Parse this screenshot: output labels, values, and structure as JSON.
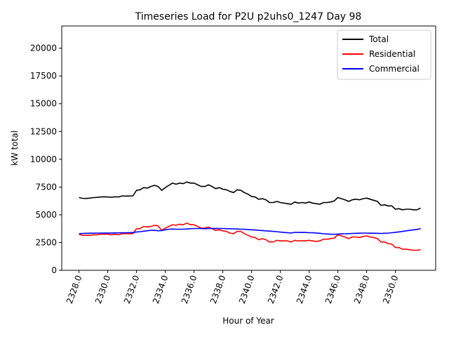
{
  "chart_data": {
    "type": "line",
    "title": "Timeseries Load for P2U p2uhs0_1247  Day 98",
    "xlabel": "Hour of Year",
    "ylabel": "kW total",
    "xlim": [
      2326.8,
      2352.8
    ],
    "ylim": [
      0,
      22000
    ],
    "x_ticks": [
      2328.0,
      2330.0,
      2332.0,
      2334.0,
      2336.0,
      2338.0,
      2340.0,
      2342.0,
      2344.0,
      2346.0,
      2348.0,
      2350.0
    ],
    "x_tick_labels": [
      "2328.0",
      "2330.0",
      "2332.0",
      "2334.0",
      "2336.0",
      "2338.0",
      "2340.0",
      "2342.0",
      "2344.0",
      "2346.0",
      "2348.0",
      "2350.0"
    ],
    "y_ticks": [
      0,
      2500,
      5000,
      7500,
      10000,
      12500,
      15000,
      17500,
      20000
    ],
    "y_tick_labels": [
      "0",
      "2500",
      "5000",
      "7500",
      "10000",
      "12500",
      "15000",
      "17500",
      "20000"
    ],
    "legend_position": "top-right",
    "x": [
      2328.0,
      2328.25,
      2328.5,
      2328.75,
      2329.0,
      2329.25,
      2329.5,
      2329.75,
      2330.0,
      2330.25,
      2330.5,
      2330.75,
      2331.0,
      2331.25,
      2331.5,
      2331.75,
      2332.0,
      2332.25,
      2332.5,
      2332.75,
      2333.0,
      2333.25,
      2333.5,
      2333.75,
      2334.0,
      2334.25,
      2334.5,
      2334.75,
      2335.0,
      2335.25,
      2335.5,
      2335.75,
      2336.0,
      2336.25,
      2336.5,
      2336.75,
      2337.0,
      2337.25,
      2337.5,
      2337.75,
      2338.0,
      2338.25,
      2338.5,
      2338.75,
      2339.0,
      2339.25,
      2339.5,
      2339.75,
      2340.0,
      2340.25,
      2340.5,
      2340.75,
      2341.0,
      2341.25,
      2341.5,
      2341.75,
      2342.0,
      2342.25,
      2342.5,
      2342.75,
      2343.0,
      2343.25,
      2343.5,
      2343.75,
      2344.0,
      2344.25,
      2344.5,
      2344.75,
      2345.0,
      2345.25,
      2345.5,
      2345.75,
      2346.0,
      2346.25,
      2346.5,
      2346.75,
      2347.0,
      2347.25,
      2347.5,
      2347.75,
      2348.0,
      2348.25,
      2348.5,
      2348.75,
      2349.0,
      2349.25,
      2349.5,
      2349.75,
      2350.0,
      2350.25,
      2350.5,
      2350.75,
      2351.0,
      2351.25,
      2351.5,
      2351.75
    ],
    "series": [
      {
        "name": "Total",
        "color": "#000000",
        "values": [
          6550,
          6480,
          6470,
          6500,
          6540,
          6560,
          6600,
          6620,
          6600,
          6580,
          6620,
          6600,
          6700,
          6680,
          6690,
          6700,
          7200,
          7250,
          7450,
          7400,
          7550,
          7650,
          7550,
          7200,
          7450,
          7650,
          7850,
          7750,
          7850,
          7800,
          7950,
          7850,
          7850,
          7700,
          7550,
          7550,
          7700,
          7550,
          7350,
          7450,
          7300,
          7250,
          7100,
          7000,
          7250,
          7200,
          7000,
          6850,
          6650,
          6600,
          6400,
          6450,
          6350,
          6100,
          6100,
          6200,
          6100,
          6050,
          6000,
          5950,
          6150,
          6050,
          6100,
          6050,
          6150,
          6050,
          6000,
          5950,
          6100,
          6100,
          6150,
          6250,
          6550,
          6450,
          6350,
          6200,
          6350,
          6400,
          6350,
          6450,
          6500,
          6400,
          6300,
          6200,
          5850,
          5900,
          5800,
          5800,
          5500,
          5550,
          5450,
          5500,
          5500,
          5450,
          5450,
          5600
        ]
      },
      {
        "name": "Residential",
        "color": "#ff0000",
        "values": [
          3250,
          3150,
          3150,
          3150,
          3200,
          3200,
          3250,
          3250,
          3250,
          3200,
          3250,
          3200,
          3300,
          3300,
          3300,
          3300,
          3750,
          3750,
          3950,
          3900,
          3950,
          4050,
          4000,
          3600,
          3800,
          3950,
          4100,
          4050,
          4150,
          4100,
          4250,
          4100,
          4100,
          3950,
          3800,
          3800,
          3900,
          3750,
          3600,
          3650,
          3550,
          3500,
          3350,
          3300,
          3500,
          3500,
          3300,
          3150,
          3000,
          2950,
          2750,
          2850,
          2750,
          2550,
          2550,
          2700,
          2650,
          2650,
          2650,
          2550,
          2700,
          2650,
          2650,
          2650,
          2700,
          2650,
          2600,
          2650,
          2800,
          2800,
          2850,
          2900,
          3200,
          3100,
          3000,
          2850,
          3000,
          3000,
          2950,
          3050,
          3100,
          3000,
          2950,
          2850,
          2550,
          2550,
          2400,
          2350,
          2050,
          2050,
          1900,
          1900,
          1850,
          1800,
          1800,
          1850
        ]
      },
      {
        "name": "Commercial",
        "color": "#0000ff",
        "values": [
          3300,
          3320,
          3330,
          3340,
          3340,
          3350,
          3350,
          3360,
          3360,
          3360,
          3370,
          3370,
          3380,
          3380,
          3390,
          3400,
          3450,
          3480,
          3520,
          3560,
          3600,
          3600,
          3560,
          3580,
          3650,
          3700,
          3720,
          3700,
          3700,
          3700,
          3720,
          3750,
          3760,
          3760,
          3760,
          3740,
          3760,
          3770,
          3770,
          3760,
          3760,
          3750,
          3740,
          3730,
          3720,
          3700,
          3690,
          3670,
          3650,
          3630,
          3600,
          3580,
          3550,
          3530,
          3500,
          3480,
          3440,
          3410,
          3390,
          3360,
          3420,
          3410,
          3420,
          3410,
          3380,
          3390,
          3360,
          3330,
          3290,
          3270,
          3250,
          3240,
          3260,
          3280,
          3290,
          3300,
          3320,
          3330,
          3340,
          3350,
          3350,
          3340,
          3340,
          3330,
          3320,
          3330,
          3350,
          3380,
          3420,
          3460,
          3500,
          3550,
          3600,
          3640,
          3680,
          3750
        ]
      }
    ]
  }
}
